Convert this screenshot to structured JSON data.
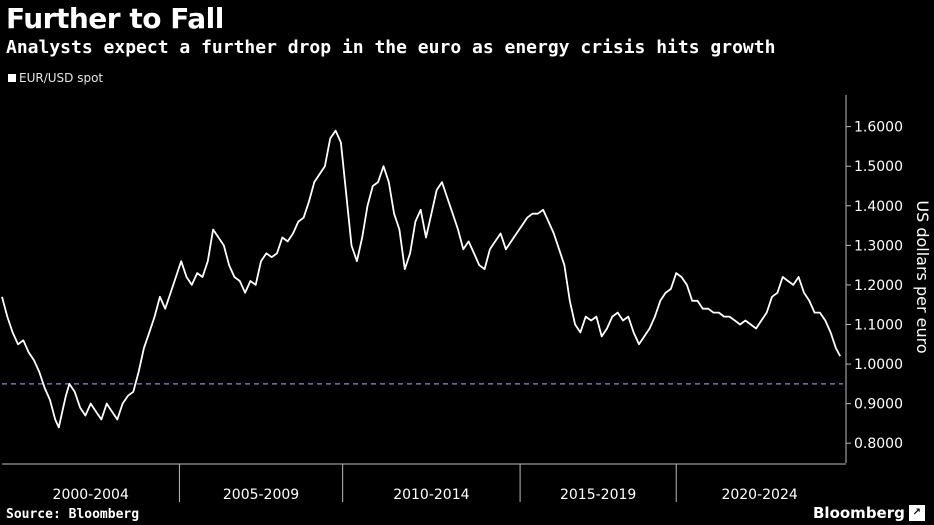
{
  "header": {
    "title": "Further to Fall",
    "subtitle": "Analysts expect a further drop in the euro as energy crisis hits growth"
  },
  "footer": {
    "source": "Source: Bloomberg",
    "brand": "Bloomberg",
    "brand_icon": "external-link-icon"
  },
  "chart_data": {
    "type": "line",
    "title": "Further to Fall",
    "subtitle": "Analysts expect a further drop in the euro as energy crisis hits growth",
    "xlabel": "",
    "ylabel": "US dollars per euro",
    "y_axis_position": "right",
    "ylim": [
      0.75,
      1.68
    ],
    "xlim": [
      1999.0,
      2022.7
    ],
    "y_ticks": [
      {
        "value": 0.8,
        "label": "0.8000"
      },
      {
        "value": 0.9,
        "label": "0.9000"
      },
      {
        "value": 1.0,
        "label": "1.0000"
      },
      {
        "value": 1.1,
        "label": "1.1000"
      },
      {
        "value": 1.2,
        "label": "1.2000"
      },
      {
        "value": 1.3,
        "label": "1.3000"
      },
      {
        "value": 1.4,
        "label": "1.4000"
      },
      {
        "value": 1.5,
        "label": "1.5000"
      },
      {
        "value": 1.6,
        "label": "1.6000"
      }
    ],
    "x_groups": [
      {
        "label": "2000-2004",
        "start": 1999.0,
        "end": 2004.0
      },
      {
        "label": "2005-2009",
        "start": 2004.0,
        "end": 2008.6
      },
      {
        "label": "2010-2014",
        "start": 2008.6,
        "end": 2013.6
      },
      {
        "label": "2015-2019",
        "start": 2013.6,
        "end": 2018.0
      },
      {
        "label": "2020-2024",
        "start": 2018.0,
        "end": 2022.7
      }
    ],
    "x_separators": [
      2004.0,
      2008.6,
      2013.6,
      2018.0
    ],
    "reference_line": {
      "value": 0.95,
      "style": "dashed",
      "color": "#9b7fd6"
    },
    "grid": false,
    "legend_position": "top-left",
    "colors": {
      "background": "#000000",
      "line": "#ffffff",
      "axis": "#bbbbbb"
    },
    "series": [
      {
        "name": "EUR/USD spot",
        "x": [
          1999.0,
          1999.15,
          1999.3,
          1999.45,
          1999.6,
          1999.75,
          1999.9,
          2000.05,
          2000.2,
          2000.35,
          2000.5,
          2000.6,
          2000.7,
          2000.8,
          2000.9,
          2001.05,
          2001.2,
          2001.35,
          2001.5,
          2001.65,
          2001.8,
          2001.95,
          2002.1,
          2002.25,
          2002.4,
          2002.55,
          2002.7,
          2002.85,
          2003.0,
          2003.15,
          2003.3,
          2003.45,
          2003.6,
          2003.75,
          2003.9,
          2004.05,
          2004.2,
          2004.35,
          2004.5,
          2004.65,
          2004.8,
          2004.95,
          2005.1,
          2005.25,
          2005.4,
          2005.55,
          2005.7,
          2005.85,
          2006.0,
          2006.15,
          2006.3,
          2006.45,
          2006.6,
          2006.75,
          2006.9,
          2007.05,
          2007.2,
          2007.35,
          2007.5,
          2007.65,
          2007.8,
          2007.95,
          2008.1,
          2008.25,
          2008.4,
          2008.55,
          2008.7,
          2008.85,
          2009.0,
          2009.15,
          2009.3,
          2009.45,
          2009.6,
          2009.75,
          2009.9,
          2010.05,
          2010.2,
          2010.35,
          2010.5,
          2010.65,
          2010.8,
          2010.95,
          2011.1,
          2011.25,
          2011.4,
          2011.55,
          2011.7,
          2011.85,
          2012.0,
          2012.15,
          2012.3,
          2012.45,
          2012.6,
          2012.75,
          2012.9,
          2013.05,
          2013.2,
          2013.35,
          2013.5,
          2013.65,
          2013.8,
          2013.95,
          2014.1,
          2014.25,
          2014.4,
          2014.55,
          2014.7,
          2014.85,
          2015.0,
          2015.15,
          2015.3,
          2015.45,
          2015.6,
          2015.75,
          2015.9,
          2016.05,
          2016.2,
          2016.35,
          2016.5,
          2016.65,
          2016.8,
          2016.95,
          2017.1,
          2017.25,
          2017.4,
          2017.55,
          2017.7,
          2017.85,
          2018.0,
          2018.15,
          2018.3,
          2018.45,
          2018.6,
          2018.75,
          2018.9,
          2019.05,
          2019.2,
          2019.35,
          2019.5,
          2019.65,
          2019.8,
          2019.95,
          2020.1,
          2020.25,
          2020.4,
          2020.55,
          2020.7,
          2020.85,
          2021.0,
          2021.15,
          2021.3,
          2021.45,
          2021.6,
          2021.75,
          2021.9,
          2022.05,
          2022.2,
          2022.35,
          2022.5,
          2022.62
        ],
        "values": [
          1.17,
          1.12,
          1.08,
          1.05,
          1.06,
          1.03,
          1.01,
          0.98,
          0.94,
          0.91,
          0.86,
          0.84,
          0.88,
          0.92,
          0.95,
          0.93,
          0.89,
          0.87,
          0.9,
          0.88,
          0.86,
          0.9,
          0.88,
          0.86,
          0.9,
          0.92,
          0.93,
          0.98,
          1.04,
          1.08,
          1.12,
          1.17,
          1.14,
          1.18,
          1.22,
          1.26,
          1.22,
          1.2,
          1.23,
          1.22,
          1.26,
          1.34,
          1.32,
          1.3,
          1.25,
          1.22,
          1.21,
          1.18,
          1.21,
          1.2,
          1.26,
          1.28,
          1.27,
          1.28,
          1.32,
          1.31,
          1.33,
          1.36,
          1.37,
          1.41,
          1.46,
          1.48,
          1.5,
          1.57,
          1.59,
          1.56,
          1.43,
          1.3,
          1.26,
          1.32,
          1.4,
          1.45,
          1.46,
          1.5,
          1.46,
          1.38,
          1.34,
          1.24,
          1.28,
          1.36,
          1.39,
          1.32,
          1.38,
          1.44,
          1.46,
          1.42,
          1.38,
          1.34,
          1.29,
          1.31,
          1.28,
          1.25,
          1.24,
          1.29,
          1.31,
          1.33,
          1.29,
          1.31,
          1.33,
          1.35,
          1.37,
          1.38,
          1.38,
          1.39,
          1.36,
          1.33,
          1.29,
          1.25,
          1.16,
          1.1,
          1.08,
          1.12,
          1.11,
          1.12,
          1.07,
          1.09,
          1.12,
          1.13,
          1.11,
          1.12,
          1.08,
          1.05,
          1.07,
          1.09,
          1.12,
          1.16,
          1.18,
          1.19,
          1.23,
          1.22,
          1.2,
          1.16,
          1.16,
          1.14,
          1.14,
          1.13,
          1.13,
          1.12,
          1.12,
          1.11,
          1.1,
          1.11,
          1.1,
          1.09,
          1.11,
          1.13,
          1.17,
          1.18,
          1.22,
          1.21,
          1.2,
          1.22,
          1.18,
          1.16,
          1.13,
          1.13,
          1.11,
          1.08,
          1.04,
          1.02
        ]
      }
    ]
  }
}
